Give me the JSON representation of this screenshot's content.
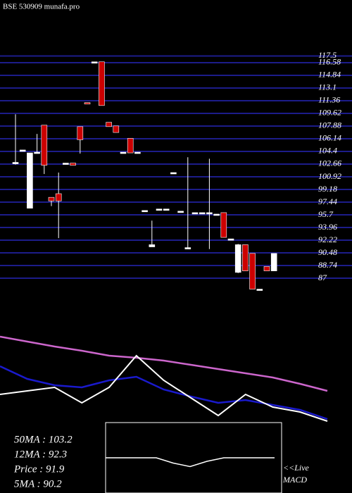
{
  "chart_data": {
    "type": "candlestick",
    "title": "BSE 530909 munafa.pro",
    "ylim": [
      85,
      118
    ],
    "yticks": [
      117.5,
      116.58,
      114.84,
      113.1,
      111.36,
      109.62,
      107.88,
      106.14,
      104.4,
      102.66,
      100.92,
      99.18,
      97.44,
      95.7,
      93.96,
      92.22,
      90.48,
      88.74,
      87
    ],
    "grid": true,
    "grid_color": "#1c1c8a",
    "up_color": "#ffffff",
    "down_color": "#cc0000",
    "open": [
      102.7,
      104.4,
      96.6,
      104.2,
      108.0,
      98.1,
      98.6,
      102.7,
      102.8,
      107.8,
      111.1,
      116.6,
      116.7,
      108.4,
      107.9,
      104.2,
      106.2,
      104.2,
      96.2,
      91.3,
      96.4,
      96.4,
      101.4,
      96.1,
      91.1,
      95.9,
      95.9,
      95.9,
      95.7,
      96.0,
      92.3,
      87.8,
      91.6,
      90.4,
      85.4,
      88.6,
      88.0
    ],
    "high": [
      109.5,
      104.6,
      104.2,
      106.8,
      108.0,
      98.1,
      101.5,
      102.8,
      102.8,
      107.8,
      111.1,
      116.7,
      116.7,
      108.4,
      107.9,
      104.3,
      106.2,
      104.3,
      96.3,
      94.9,
      96.5,
      96.5,
      101.5,
      96.2,
      103.6,
      96.0,
      96.0,
      103.4,
      95.8,
      96.0,
      92.4,
      91.7,
      91.6,
      90.4,
      85.5,
      88.6,
      90.4
    ],
    "low": [
      102.6,
      104.4,
      96.6,
      104.2,
      101.3,
      96.9,
      92.5,
      102.6,
      102.5,
      104.1,
      110.9,
      116.6,
      110.7,
      107.8,
      107.0,
      104.2,
      104.2,
      104.2,
      96.2,
      91.3,
      96.4,
      96.4,
      101.4,
      96.1,
      91.1,
      95.9,
      95.9,
      91.0,
      95.7,
      92.6,
      92.3,
      87.7,
      88.0,
      85.5,
      85.4,
      88.0,
      88.0
    ],
    "close": [
      102.9,
      104.6,
      104.2,
      104.3,
      102.5,
      97.6,
      97.6,
      102.8,
      102.5,
      106.0,
      110.9,
      116.7,
      110.7,
      107.8,
      107.0,
      104.3,
      104.2,
      104.3,
      96.3,
      91.6,
      96.5,
      96.5,
      101.5,
      96.2,
      91.2,
      96.0,
      96.0,
      96.0,
      95.8,
      92.6,
      92.4,
      91.6,
      88.0,
      85.5,
      85.5,
      88.0,
      90.4
    ],
    "indicators": {
      "ylim": [
        -20,
        130
      ],
      "series": [
        {
          "color": "#cc66cc",
          "values": [
            122,
            115,
            108,
            102,
            95,
            92,
            88,
            82,
            76,
            70,
            64,
            55,
            45
          ]
        },
        {
          "color": "#1a1acc",
          "values": [
            80,
            62,
            53,
            50,
            60,
            65,
            47,
            37,
            28,
            32,
            25,
            18,
            5
          ]
        },
        {
          "color": "#ffffff",
          "values": [
            40,
            45,
            50,
            28,
            50,
            95,
            60,
            35,
            10,
            40,
            22,
            15,
            2
          ]
        }
      ]
    },
    "macd": {
      "ylim": [
        -20,
        20
      ],
      "color": "#ffffff",
      "values": [
        0,
        0,
        0,
        0,
        -3,
        -5,
        -2,
        0,
        0,
        0,
        0
      ]
    },
    "stats": [
      "50MA : 103.2",
      "12MA : 92.3",
      "Price  : 91.9",
      "5MA : 90.2"
    ],
    "live_label": "<<Live",
    "macd_label": "MACD"
  }
}
